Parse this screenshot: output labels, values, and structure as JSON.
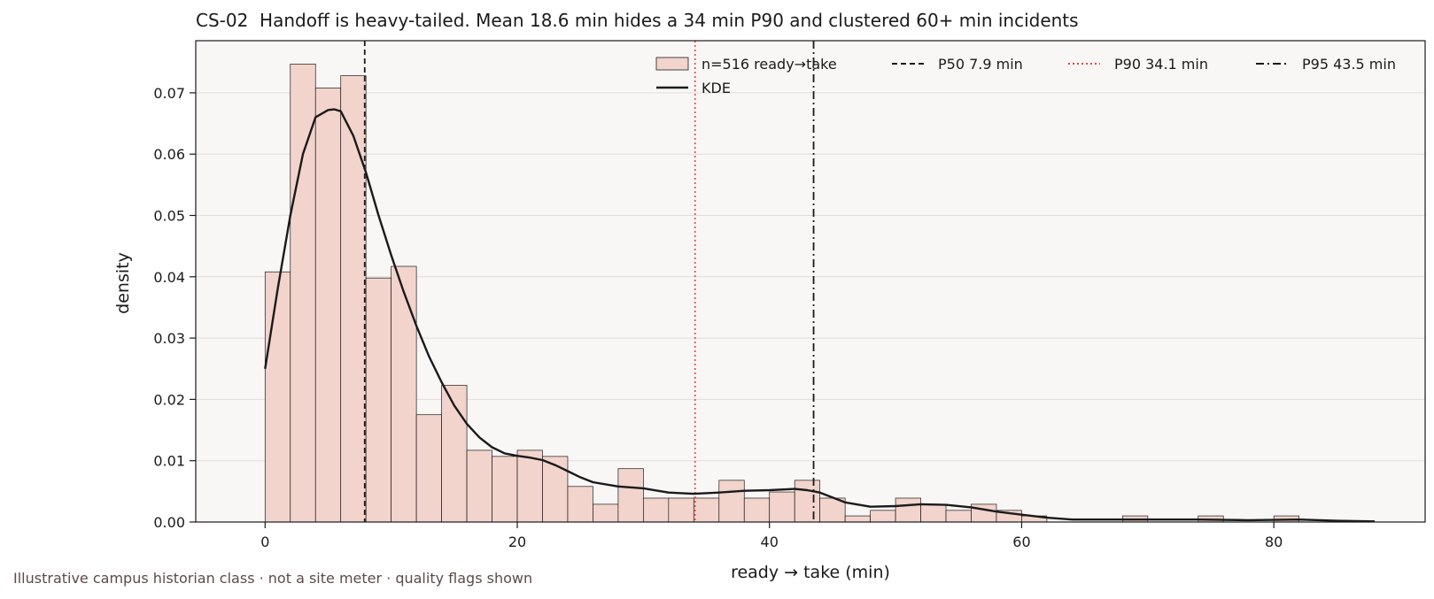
{
  "chart_data": {
    "type": "bar",
    "title": "CS-02  Handoff is heavy-tailed. Mean 18.6 min hides a 34 min P90 and clustered 60+ min incidents",
    "xlabel": "ready → take (min)",
    "ylabel": "density",
    "xlim": [
      -5.5,
      92
    ],
    "ylim": [
      0,
      0.0785
    ],
    "x_ticks": [
      0,
      20,
      40,
      60,
      80
    ],
    "y_ticks": [
      0.0,
      0.01,
      0.02,
      0.03,
      0.04,
      0.05,
      0.06,
      0.07
    ],
    "x_tick_labels": [
      "0",
      "20",
      "40",
      "60",
      "80"
    ],
    "y_tick_labels": [
      "0.00",
      "0.01",
      "0.02",
      "0.03",
      "0.04",
      "0.05",
      "0.06",
      "0.07"
    ],
    "grid": "horizontal",
    "legend_position": "top-right",
    "bin_width": 2,
    "bin_start": 0,
    "histogram": {
      "name": "n=516 ready→take",
      "color": "#f2d4cc",
      "values": [
        0.0408,
        0.0747,
        0.0708,
        0.0728,
        0.0398,
        0.0417,
        0.0175,
        0.0223,
        0.0117,
        0.0107,
        0.0117,
        0.0107,
        0.0058,
        0.0029,
        0.0087,
        0.0039,
        0.0039,
        0.0039,
        0.0068,
        0.0039,
        0.0049,
        0.0068,
        0.0039,
        0.001,
        0.0019,
        0.0039,
        0.0029,
        0.0019,
        0.0029,
        0.0019,
        0.001,
        0,
        0,
        0,
        0.001,
        0,
        0,
        0.001,
        0,
        0,
        0.001,
        0,
        0,
        0
      ]
    },
    "kde": {
      "name": "KDE",
      "color": "#1a1a1a",
      "x": [
        0,
        1,
        2,
        3,
        4,
        5,
        5.5,
        6,
        7,
        8,
        9,
        10,
        11,
        12,
        13,
        14,
        15,
        16,
        17,
        18,
        19,
        20,
        21,
        22,
        23,
        24,
        25,
        26,
        28,
        30,
        32,
        34,
        36,
        38,
        40,
        42,
        43,
        44,
        45,
        46,
        48,
        50,
        52,
        54,
        56,
        58,
        60,
        62,
        64,
        66,
        70,
        74,
        78,
        82,
        85,
        88
      ],
      "y": [
        0.025,
        0.038,
        0.05,
        0.06,
        0.066,
        0.0672,
        0.0673,
        0.067,
        0.063,
        0.057,
        0.05,
        0.0435,
        0.0375,
        0.032,
        0.027,
        0.0228,
        0.019,
        0.016,
        0.0138,
        0.0122,
        0.0112,
        0.0108,
        0.0105,
        0.0101,
        0.0093,
        0.0083,
        0.0073,
        0.0065,
        0.0058,
        0.0055,
        0.0048,
        0.0046,
        0.0048,
        0.0051,
        0.0052,
        0.0054,
        0.0052,
        0.0048,
        0.004,
        0.0032,
        0.0025,
        0.0026,
        0.0029,
        0.0028,
        0.0024,
        0.0017,
        0.0012,
        0.0007,
        0.0004,
        0.0004,
        0.0004,
        0.0004,
        0.0003,
        0.0004,
        0.0002,
        0.0001
      ]
    },
    "reference_lines": [
      {
        "name": "P50 7.9 min",
        "x": 7.9,
        "color": "#1a1a1a",
        "style": "dashed"
      },
      {
        "name": "P90 34.1 min",
        "x": 34.1,
        "color": "#e8453c",
        "style": "dotted"
      },
      {
        "name": "P95 43.5 min",
        "x": 43.5,
        "color": "#1a1a1a",
        "style": "dashdot"
      }
    ],
    "colors": {
      "plot_background": "#f9f7f6",
      "grid": "#e2dcda",
      "bar_edge": "#1a1a1a"
    }
  },
  "footnote": "Illustrative campus historian class  ·  not a site meter  ·  quality flags shown"
}
